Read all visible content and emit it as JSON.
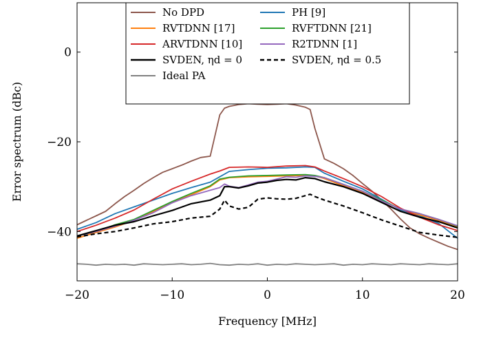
{
  "chart_data": {
    "type": "line",
    "xlabel": "Frequency [MHz]",
    "ylabel": "Error spectrum (dBc)",
    "xlim": [
      -20,
      20
    ],
    "ylim": [
      -51,
      11
    ],
    "xticks": [
      -20,
      -10,
      0,
      10,
      20
    ],
    "xtick_labels": [
      "−20",
      "−10",
      "0",
      "10",
      "20"
    ],
    "yticks": [
      -40,
      -20,
      0
    ],
    "ytick_labels": [
      "−40",
      "−20",
      "0"
    ],
    "grid": false,
    "legend_position": "top-center",
    "legend_columns": 2,
    "series": [
      {
        "name": "No DPD",
        "color": "#8c564b",
        "dash": "solid",
        "x": [
          -20,
          -19,
          -18,
          -17,
          -16,
          -15,
          -14,
          -13,
          -12,
          -11,
          -10,
          -9,
          -8,
          -7,
          -6,
          -5,
          -4.5,
          -4,
          -3,
          -2,
          -1,
          0,
          1,
          2,
          3,
          4,
          4.5,
          5,
          6,
          7,
          8,
          9,
          10,
          11,
          12,
          13,
          14,
          15,
          16,
          17,
          18,
          19,
          20
        ],
        "values": [
          -38.5,
          -37.5,
          -36.5,
          -35.5,
          -33.8,
          -32.2,
          -30.8,
          -29.3,
          -28.0,
          -26.8,
          -26.0,
          -25.2,
          -24.3,
          -23.5,
          -23.2,
          -14,
          -12.5,
          -12.1,
          -11.7,
          -11.5,
          -11.6,
          -11.7,
          -11.6,
          -11.5,
          -11.8,
          -12.3,
          -12.8,
          -17,
          -23.8,
          -24.8,
          -26.0,
          -27.5,
          -29.3,
          -31.0,
          -33.0,
          -35.0,
          -37.2,
          -39.2,
          -40.5,
          -41.5,
          -42.4,
          -43.3,
          -44.0
        ]
      },
      {
        "name": "PH [9]",
        "color": "#1f77b4",
        "dash": "solid",
        "x": [
          -20,
          -18,
          -16,
          -14,
          -12,
          -10,
          -8,
          -6,
          -5,
          -4,
          -2,
          0,
          2,
          4,
          5,
          6,
          8,
          10,
          12,
          14,
          16,
          18,
          20
        ],
        "values": [
          -39.5,
          -38.0,
          -36.0,
          -34.5,
          -33.0,
          -31.5,
          -30.2,
          -29.0,
          -27.8,
          -26.6,
          -26.2,
          -25.9,
          -25.8,
          -25.6,
          -25.7,
          -27.0,
          -28.8,
          -30.5,
          -32.8,
          -35.2,
          -36.5,
          -38.2,
          -41.5
        ]
      },
      {
        "name": "RVTDNN [17]",
        "color": "#ff7f0e",
        "dash": "solid",
        "x": [
          -20,
          -18,
          -16,
          -14,
          -12,
          -10,
          -8,
          -6,
          -5,
          -4,
          -2,
          0,
          2,
          4,
          5,
          6,
          8,
          10,
          12,
          14,
          16,
          18,
          20
        ],
        "values": [
          -41.5,
          -40.2,
          -39.0,
          -37.5,
          -35.5,
          -33.5,
          -31.8,
          -30.0,
          -28.5,
          -28.0,
          -27.8,
          -27.7,
          -27.6,
          -27.5,
          -27.6,
          -28.2,
          -29.8,
          -31.3,
          -33.2,
          -35.0,
          -36.3,
          -37.5,
          -39.0
        ]
      },
      {
        "name": "RVFTDNN [21]",
        "color": "#2ca02c",
        "dash": "solid",
        "x": [
          -20,
          -18,
          -16,
          -14,
          -12,
          -10,
          -8,
          -6,
          -5,
          -4,
          -2,
          0,
          2,
          4,
          5,
          6,
          8,
          10,
          12,
          14,
          16,
          18,
          20
        ],
        "values": [
          -41.0,
          -40.0,
          -38.5,
          -37.3,
          -35.3,
          -33.3,
          -31.5,
          -29.8,
          -28.3,
          -27.9,
          -27.6,
          -27.5,
          -27.4,
          -27.3,
          -27.5,
          -28.0,
          -29.5,
          -31.0,
          -33.0,
          -35.0,
          -36.0,
          -37.3,
          -38.8
        ]
      },
      {
        "name": "ARVTDNN [10]",
        "color": "#d62728",
        "dash": "solid",
        "x": [
          -20,
          -18,
          -16,
          -14,
          -12,
          -10,
          -8,
          -6,
          -5,
          -4,
          -2,
          0,
          2,
          4,
          5,
          6,
          8,
          10,
          12,
          14,
          16,
          18,
          20
        ],
        "values": [
          -40.0,
          -38.6,
          -37.0,
          -35.2,
          -32.8,
          -30.5,
          -28.8,
          -27.2,
          -26.5,
          -25.7,
          -25.6,
          -25.7,
          -25.4,
          -25.3,
          -25.6,
          -26.5,
          -28.2,
          -30.0,
          -32.2,
          -34.8,
          -36.8,
          -38.5,
          -39.8
        ]
      },
      {
        "name": "R2TDNN [1]",
        "color": "#9467bd",
        "dash": "solid",
        "x": [
          -20,
          -18,
          -16,
          -14,
          -12,
          -10,
          -8,
          -6,
          -5,
          -4.5,
          -4,
          -3,
          -2,
          -1,
          0,
          1,
          2,
          3,
          4,
          5,
          6,
          8,
          10,
          12,
          14,
          16,
          18,
          20
        ],
        "values": [
          -41.0,
          -40.0,
          -38.8,
          -37.5,
          -35.8,
          -33.6,
          -32.0,
          -30.8,
          -30.2,
          -29.4,
          -29.9,
          -30.2,
          -29.6,
          -29.0,
          -28.8,
          -28.3,
          -27.8,
          -27.9,
          -27.6,
          -27.7,
          -28.0,
          -29.5,
          -31.0,
          -33.2,
          -35.0,
          -36.0,
          -37.3,
          -38.7
        ]
      },
      {
        "name": "SVDEN, ηd = 0",
        "color": "#000000",
        "dash": "solid",
        "x": [
          -20,
          -18,
          -16,
          -14,
          -12,
          -10,
          -8,
          -6,
          -5,
          -4.5,
          -4,
          -3,
          -2,
          -1,
          0,
          1,
          2,
          3,
          4,
          5,
          6,
          8,
          10,
          12,
          14,
          16,
          18,
          20
        ],
        "values": [
          -41.0,
          -39.8,
          -38.6,
          -37.8,
          -36.5,
          -35.3,
          -33.8,
          -33.0,
          -32.0,
          -30.0,
          -30.0,
          -30.3,
          -29.8,
          -29.2,
          -29.0,
          -28.6,
          -28.4,
          -28.5,
          -28.0,
          -28.2,
          -28.9,
          -30.0,
          -31.5,
          -33.5,
          -35.5,
          -36.8,
          -37.8,
          -39.2
        ]
      },
      {
        "name": "SVDEN, ηd = 0.5",
        "color": "#000000",
        "dash": "dashed",
        "x": [
          -20,
          -18,
          -16,
          -14,
          -12,
          -10,
          -8,
          -6,
          -5,
          -4.5,
          -4,
          -3,
          -2,
          -1,
          0,
          1,
          2,
          3,
          4,
          4.5,
          5,
          6,
          8,
          10,
          12,
          14,
          16,
          18,
          20
        ],
        "values": [
          -41.2,
          -40.5,
          -40.0,
          -39.2,
          -38.3,
          -37.8,
          -37.0,
          -36.6,
          -35.0,
          -33.0,
          -34.3,
          -35.0,
          -34.6,
          -32.8,
          -32.5,
          -32.7,
          -32.8,
          -32.6,
          -32.0,
          -31.7,
          -32.2,
          -33.0,
          -34.3,
          -35.8,
          -37.4,
          -38.8,
          -40.2,
          -40.8,
          -41.3
        ]
      },
      {
        "name": "Ideal PA",
        "color": "#7f7f7f",
        "dash": "solid",
        "x": [
          -20,
          -19,
          -18,
          -17,
          -16,
          -15,
          -14,
          -13,
          -12,
          -11,
          -10,
          -9,
          -8,
          -7,
          -6,
          -5,
          -4,
          -3,
          -2,
          -1,
          0,
          1,
          2,
          3,
          4,
          5,
          6,
          7,
          8,
          9,
          10,
          11,
          12,
          13,
          14,
          15,
          16,
          17,
          18,
          19,
          20
        ],
        "values": [
          -47.2,
          -47.3,
          -47.5,
          -47.3,
          -47.4,
          -47.3,
          -47.5,
          -47.2,
          -47.3,
          -47.4,
          -47.3,
          -47.2,
          -47.4,
          -47.3,
          -47.1,
          -47.4,
          -47.5,
          -47.3,
          -47.4,
          -47.2,
          -47.5,
          -47.3,
          -47.4,
          -47.2,
          -47.3,
          -47.4,
          -47.3,
          -47.2,
          -47.5,
          -47.3,
          -47.4,
          -47.2,
          -47.3,
          -47.4,
          -47.2,
          -47.3,
          -47.4,
          -47.2,
          -47.3,
          -47.4,
          -47.2
        ]
      }
    ]
  }
}
